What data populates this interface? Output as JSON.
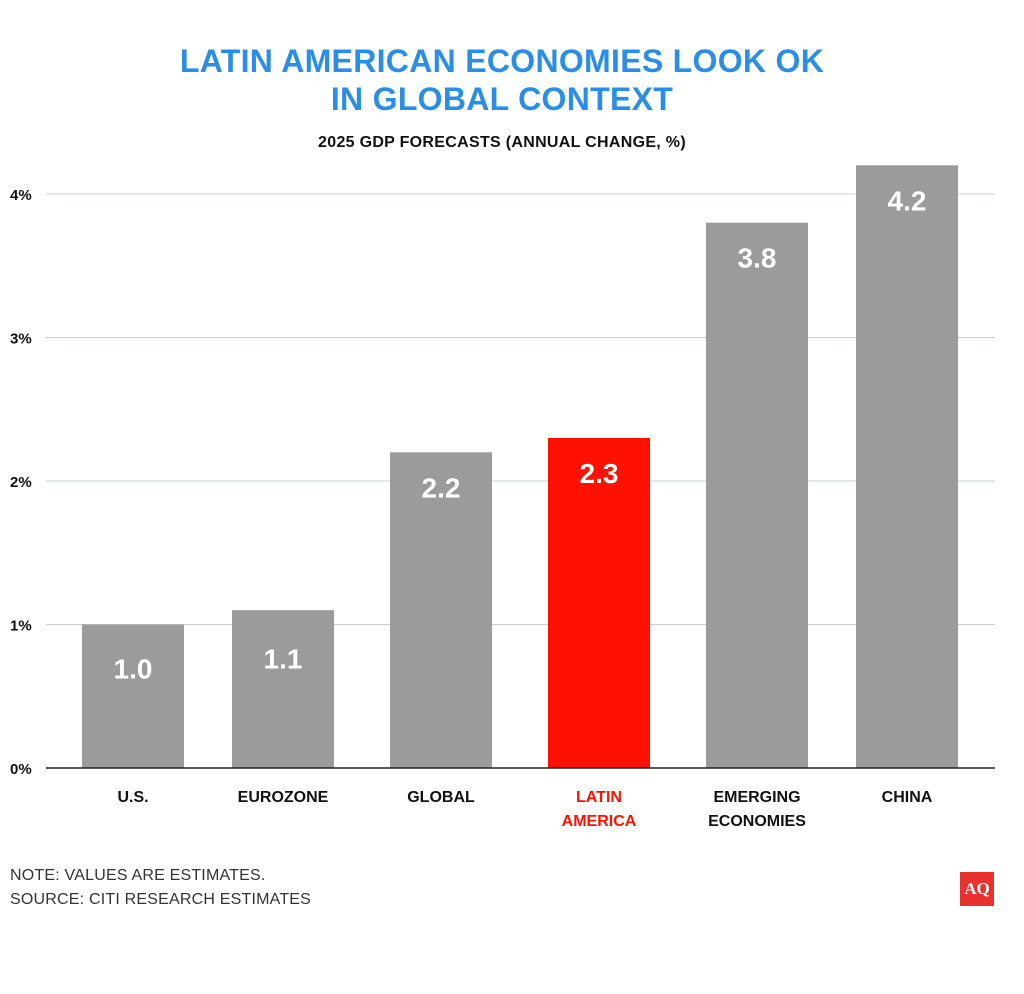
{
  "colors": {
    "title": "#2a8ee8",
    "bar": "#9b9b9b",
    "highlight": "#ff1100",
    "grid": "#c8d0d6",
    "axis": "#222222",
    "logo": "#e8322c"
  },
  "chart_data": {
    "type": "bar",
    "title": [
      "LATIN AMERICAN ECONOMIES LOOK OK",
      "IN GLOBAL CONTEXT"
    ],
    "subtitle": "2025 GDP FORECASTS (ANNUAL CHANGE, %)",
    "categories": [
      [
        "U.S."
      ],
      [
        "EUROZONE"
      ],
      [
        "GLOBAL"
      ],
      [
        "LATIN",
        "AMERICA"
      ],
      [
        "EMERGING",
        "ECONOMIES"
      ],
      [
        "CHINA"
      ]
    ],
    "values": [
      1.0,
      1.1,
      2.2,
      2.3,
      3.8,
      4.2
    ],
    "value_labels": [
      "1.0",
      "1.1",
      "2.2",
      "2.3",
      "3.8",
      "4.2"
    ],
    "highlight_index": 3,
    "yticks": [
      0,
      1,
      2,
      3,
      4
    ],
    "ytick_labels": [
      "0%",
      "1%",
      "2%",
      "3%",
      "4%"
    ],
    "ylim": [
      0,
      4.2
    ],
    "grid": true
  },
  "notes": {
    "note": "NOTE: VALUES ARE ESTIMATES.",
    "source": "SOURCE: CITI RESEARCH ESTIMATES"
  },
  "logo": {
    "text": "AQ"
  }
}
